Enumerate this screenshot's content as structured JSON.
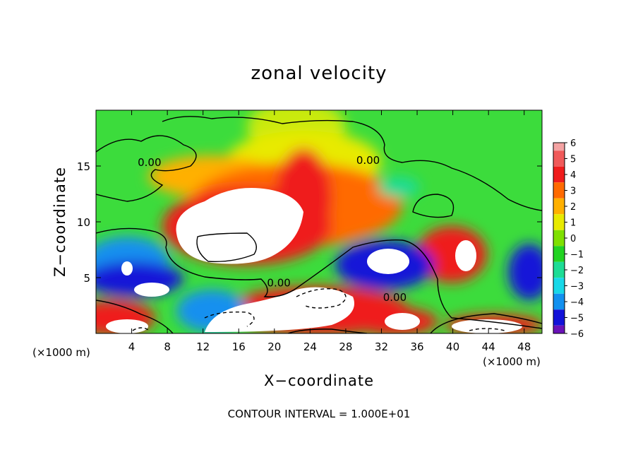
{
  "chart_data": {
    "type": "heatmap",
    "title": "zonal velocity",
    "xlabel": "X−coordinate",
    "ylabel": "Z−coordinate",
    "x_unit_left": "(×1000 m)",
    "x_unit_right": "(×1000 m)",
    "xlim": [
      0,
      50
    ],
    "ylim": [
      0,
      20
    ],
    "x_ticks": [
      4,
      8,
      12,
      16,
      20,
      24,
      28,
      32,
      36,
      40,
      44,
      48
    ],
    "y_ticks": [
      5,
      10,
      15
    ],
    "colorbar": {
      "levels": [
        6,
        5,
        4,
        3,
        2,
        1,
        0,
        -1,
        -2,
        -3,
        -4,
        -5,
        -6
      ],
      "labels": [
        "6",
        "5",
        "4",
        "3",
        "2",
        "1",
        "0",
        "−1",
        "−2",
        "−3",
        "−4",
        "−5",
        "−6"
      ],
      "colors": [
        "#f4a3a3",
        "#f05a5a",
        "#ef1c1c",
        "#ff6a00",
        "#ffb000",
        "#e8ea00",
        "#7fe000",
        "#22d322",
        "#1ddc95",
        "#18d8e8",
        "#1290ef",
        "#1212d8",
        "#6a12b8"
      ]
    },
    "contour_labels": [
      {
        "x": 6,
        "y": 15,
        "text": "0.00"
      },
      {
        "x": 30.5,
        "y": 15.2,
        "text": "0.00"
      },
      {
        "x": 20.5,
        "y": 4.2,
        "text": "0.00"
      },
      {
        "x": 33.5,
        "y": 2.9,
        "text": "0.00"
      }
    ],
    "note": "CONTOUR INTERVAL = 1.000E+01"
  }
}
